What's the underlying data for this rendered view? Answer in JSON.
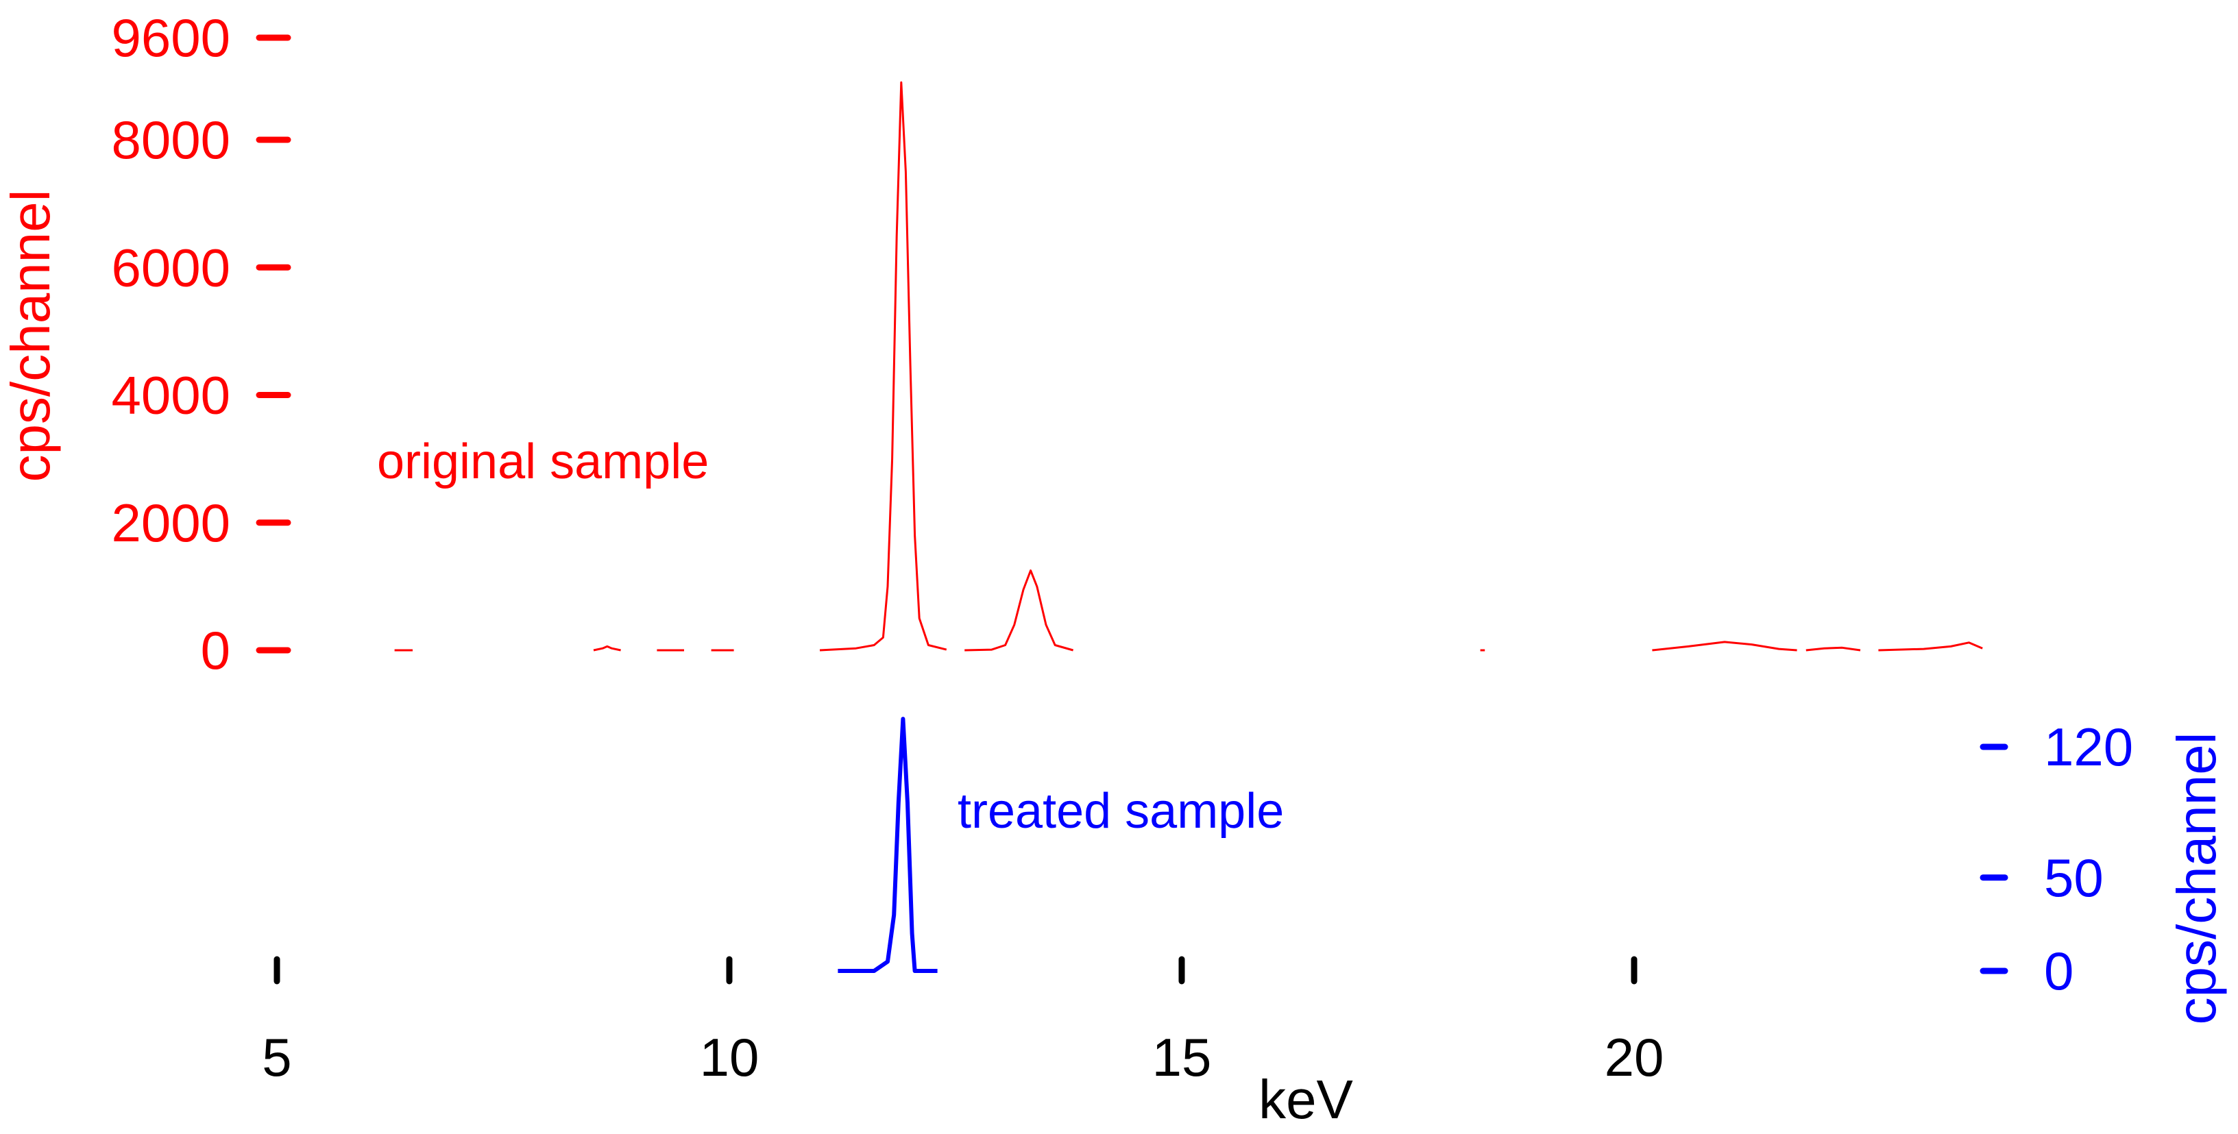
{
  "chart_data": {
    "type": "line",
    "title": "",
    "xlabel": "keV",
    "xlim": [
      5,
      24
    ],
    "x_ticks": [
      5,
      10,
      15,
      20
    ],
    "grid": false,
    "legend": "none",
    "colors": {
      "original": "#ff0000",
      "treated": "#0000ff",
      "axis": "#000000"
    },
    "series": [
      {
        "name": "original sample",
        "axis": "left",
        "ylabel": "cps/channel",
        "ylim": [
          0,
          9600
        ],
        "y_ticks": [
          0,
          2000,
          4000,
          6000,
          8000,
          9600
        ],
        "segments": [
          [
            [
              6.3,
              0
            ],
            [
              6.5,
              0
            ]
          ],
          [
            [
              8.5,
              0
            ],
            [
              8.6,
              30
            ],
            [
              8.65,
              60
            ],
            [
              8.7,
              30
            ],
            [
              8.8,
              0
            ]
          ],
          [
            [
              9.2,
              0
            ],
            [
              9.5,
              0
            ]
          ],
          [
            [
              9.8,
              0
            ],
            [
              10.05,
              0
            ]
          ],
          [
            [
              11.0,
              0
            ],
            [
              11.4,
              30
            ],
            [
              11.6,
              80
            ],
            [
              11.7,
              200
            ],
            [
              11.75,
              1000
            ],
            [
              11.8,
              3000
            ],
            [
              11.85,
              6500
            ],
            [
              11.9,
              8900
            ],
            [
              11.95,
              7500
            ],
            [
              12.0,
              4500
            ],
            [
              12.05,
              1800
            ],
            [
              12.1,
              500
            ],
            [
              12.2,
              80
            ],
            [
              12.4,
              10
            ]
          ],
          [
            [
              12.6,
              0
            ],
            [
              12.9,
              10
            ],
            [
              13.05,
              80
            ],
            [
              13.15,
              400
            ],
            [
              13.25,
              950
            ],
            [
              13.33,
              1250
            ],
            [
              13.4,
              1000
            ],
            [
              13.5,
              400
            ],
            [
              13.6,
              80
            ],
            [
              13.8,
              0
            ]
          ],
          [
            [
              18.3,
              0
            ],
            [
              18.35,
              0
            ]
          ],
          [
            [
              20.2,
              0
            ],
            [
              20.6,
              60
            ],
            [
              21.0,
              130
            ],
            [
              21.3,
              90
            ],
            [
              21.6,
              20
            ],
            [
              21.8,
              0
            ]
          ],
          [
            [
              21.9,
              0
            ],
            [
              22.1,
              30
            ],
            [
              22.3,
              40
            ],
            [
              22.5,
              0
            ]
          ],
          [
            [
              22.7,
              0
            ],
            [
              23.2,
              20
            ],
            [
              23.5,
              60
            ],
            [
              23.7,
              120
            ],
            [
              23.85,
              30
            ]
          ]
        ]
      },
      {
        "name": "treated sample",
        "axis": "right",
        "ylabel": "cps/channel",
        "ylim": [
          0,
          140
        ],
        "y_ticks": [
          0,
          50,
          120
        ],
        "segments": [
          [
            [
              11.2,
              0
            ],
            [
              11.6,
              0
            ],
            [
              11.75,
              5
            ],
            [
              11.82,
              30
            ],
            [
              11.87,
              90
            ],
            [
              11.92,
              135
            ],
            [
              11.97,
              90
            ],
            [
              12.02,
              20
            ],
            [
              12.05,
              0
            ],
            [
              12.3,
              0
            ]
          ]
        ]
      }
    ],
    "annotations": [
      {
        "text": "original sample",
        "series": "original sample"
      },
      {
        "text": "treated sample",
        "series": "treated sample"
      }
    ]
  }
}
